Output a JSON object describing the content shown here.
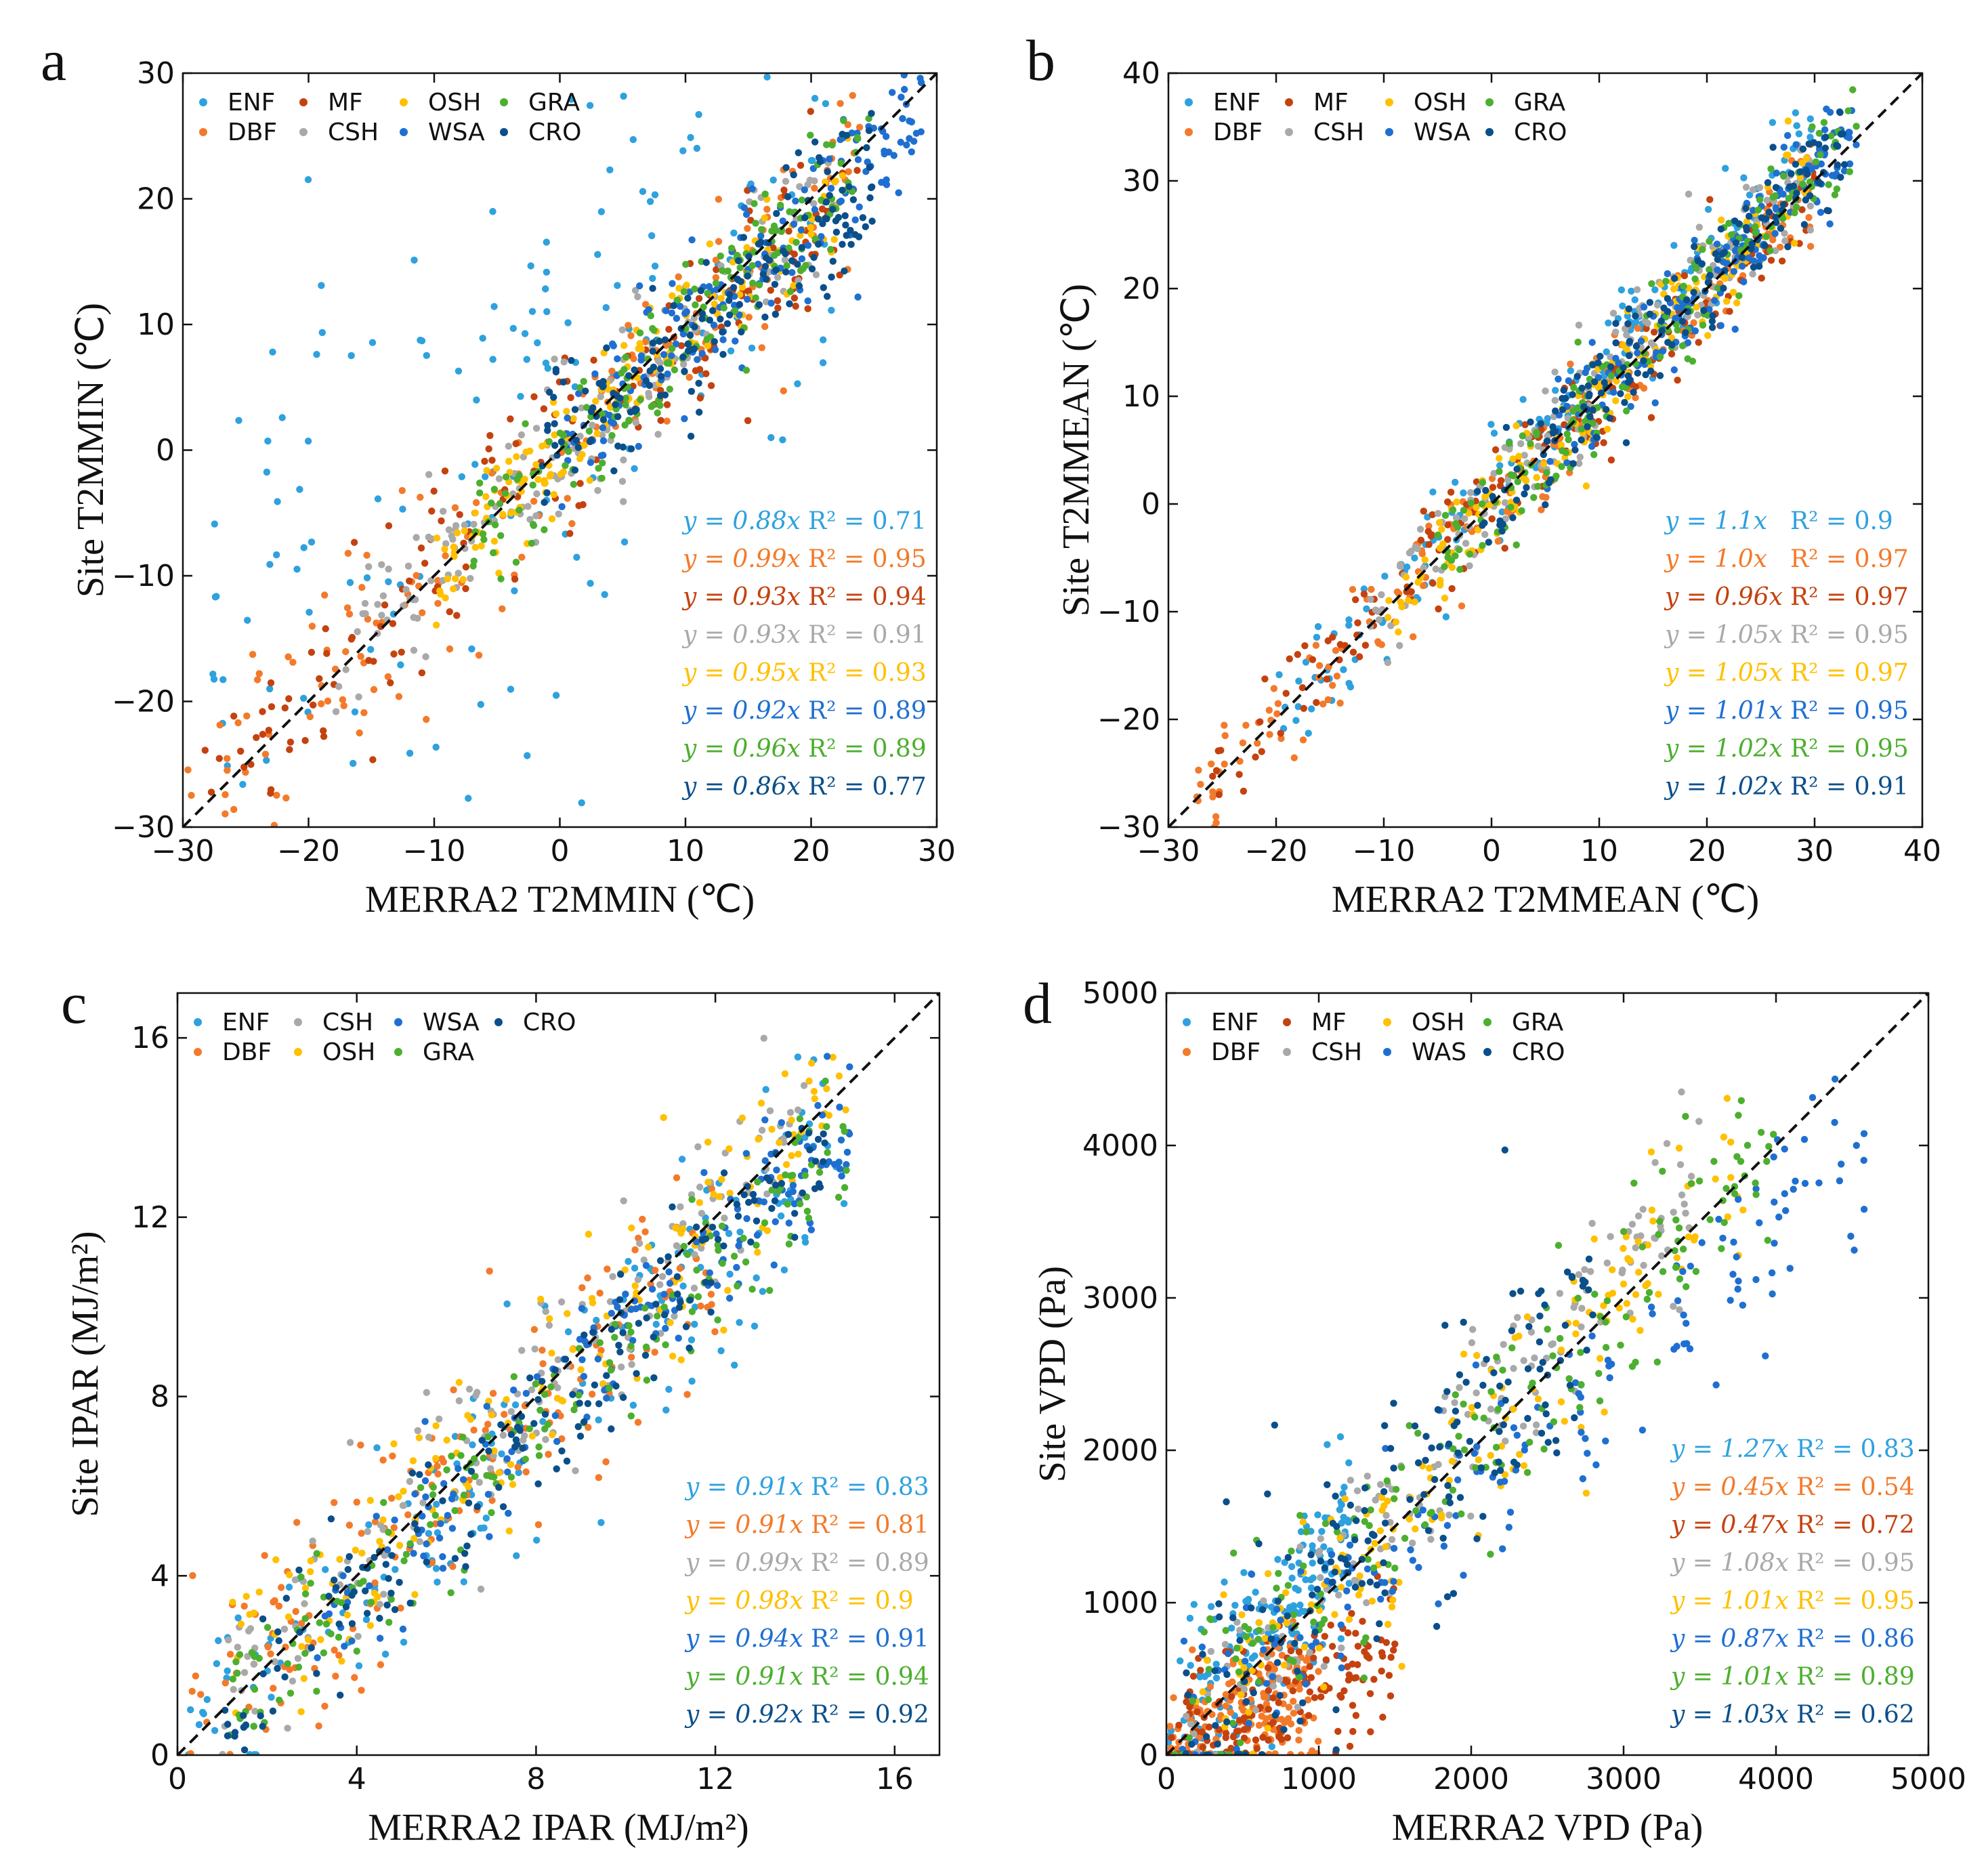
{
  "colors": {
    "ENF": "#2ea1de",
    "DBF": "#f37a2a",
    "MF": "#c4420f",
    "CSH": "#a9a9a9",
    "OSH": "#ffc000",
    "WSA": "#1f6fd1",
    "GRA": "#4caf2f",
    "CRO": "#0b4f8a"
  },
  "chart_data": [
    {
      "type": "scatter",
      "panel": "a",
      "xlabel": "MERRA2 T2MMIN (℃)",
      "ylabel": "Site T2MMIN (℃)",
      "xlim": [
        -30,
        30
      ],
      "ylim": [
        -30,
        30
      ],
      "xticks": [
        -30,
        -20,
        -10,
        0,
        10,
        20,
        30
      ],
      "yticks": [
        -30,
        -20,
        -10,
        0,
        10,
        20,
        30
      ],
      "xtick_labels": [
        "−30",
        "−20",
        "−10",
        "0",
        "10",
        "20",
        "30"
      ],
      "ytick_labels": [
        "−30",
        "−20",
        "−10",
        "0",
        "10",
        "20",
        "30"
      ],
      "legend": [
        "ENF",
        "DBF",
        "MF",
        "CSH",
        "OSH",
        "WSA",
        "GRA",
        "CRO"
      ],
      "legend_placement": "top-left",
      "stats_placement": "bottom-right",
      "series": [
        {
          "name": "ENF",
          "slope": 0.88,
          "r2": "0.71",
          "eq": "y = 0.88x",
          "r2_label": "R² = 0.71",
          "x_range": [
            -28,
            22
          ],
          "noise": 0.2,
          "offset": 0.22
        },
        {
          "name": "DBF",
          "slope": 0.99,
          "r2": "0.95",
          "eq": "y = 0.99x",
          "r2_label": "R² = 0.95",
          "x_range": [
            -30,
            24
          ],
          "noise": 0.07,
          "offset": 0
        },
        {
          "name": "MF",
          "slope": 0.93,
          "r2": "0.94",
          "eq": "y = 0.93x",
          "r2_label": "R² = 0.94",
          "x_range": [
            -30,
            24
          ],
          "noise": 0.06,
          "offset": -0.02
        },
        {
          "name": "CSH",
          "slope": 0.93,
          "r2": "0.91",
          "eq": "y = 0.93x",
          "r2_label": "R² = 0.91",
          "x_range": [
            -18,
            22
          ],
          "noise": 0.05,
          "offset": 0
        },
        {
          "name": "OSH",
          "slope": 0.95,
          "r2": "0.93",
          "eq": "y = 0.95x",
          "r2_label": "R² = 0.93",
          "x_range": [
            -10,
            23
          ],
          "noise": 0.04,
          "offset": 0
        },
        {
          "name": "WSA",
          "slope": 0.92,
          "r2": "0.89",
          "eq": "y = 0.92x",
          "r2_label": "R² = 0.89",
          "x_range": [
            0,
            29
          ],
          "noise": 0.05,
          "offset": 0
        },
        {
          "name": "GRA",
          "slope": 0.96,
          "r2": "0.89",
          "eq": "y = 0.96x",
          "r2_label": "R² = 0.89",
          "x_range": [
            -8,
            25
          ],
          "noise": 0.05,
          "offset": 0
        },
        {
          "name": "CRO",
          "slope": 0.86,
          "r2": "0.77",
          "eq": "y = 0.86x",
          "r2_label": "R² = 0.77",
          "x_range": [
            -2,
            25
          ],
          "noise": 0.05,
          "offset": 0
        }
      ]
    },
    {
      "type": "scatter",
      "panel": "b",
      "xlabel": "MERRA2 T2MMEAN (℃)",
      "ylabel": "Site T2MMEAN (℃)",
      "xlim": [
        -30,
        40
      ],
      "ylim": [
        -30,
        40
      ],
      "xticks": [
        -30,
        -20,
        -10,
        0,
        10,
        20,
        30,
        40
      ],
      "yticks": [
        -30,
        -20,
        -10,
        0,
        10,
        20,
        30,
        40
      ],
      "xtick_labels": [
        "−30",
        "−20",
        "−10",
        "0",
        "10",
        "20",
        "30",
        "40"
      ],
      "ytick_labels": [
        "−30",
        "−20",
        "−10",
        "0",
        "10",
        "20",
        "30",
        "40"
      ],
      "legend": [
        "ENF",
        "DBF",
        "MF",
        "CSH",
        "OSH",
        "WSA",
        "GRA",
        "CRO"
      ],
      "legend_placement": "top-left",
      "stats_placement": "bottom-right",
      "series": [
        {
          "name": "ENF",
          "slope": 1.1,
          "r2": "0.9",
          "eq": "y = 1.1x",
          "r2_label": "R² = 0.9",
          "x_range": [
            -20,
            30
          ],
          "noise": 0.04,
          "offset": 0.04
        },
        {
          "name": "DBF",
          "slope": 1.0,
          "r2": "0.97",
          "eq": "y = 1.0x",
          "r2_label": "R² = 0.97",
          "x_range": [
            -28,
            30
          ],
          "noise": 0.035,
          "offset": 0
        },
        {
          "name": "MF",
          "slope": 0.96,
          "r2": "0.97",
          "eq": "y = 0.96x",
          "r2_label": "R² = 0.97",
          "x_range": [
            -27,
            30
          ],
          "noise": 0.035,
          "offset": 0
        },
        {
          "name": "CSH",
          "slope": 1.05,
          "r2": "0.95",
          "eq": "y = 1.05x",
          "r2_label": "R² = 0.95",
          "x_range": [
            -12,
            30
          ],
          "noise": 0.035,
          "offset": 0.02
        },
        {
          "name": "OSH",
          "slope": 1.05,
          "r2": "0.97",
          "eq": "y = 1.05x",
          "r2_label": "R² = 0.97",
          "x_range": [
            -10,
            30
          ],
          "noise": 0.03,
          "offset": 0
        },
        {
          "name": "WSA",
          "slope": 1.01,
          "r2": "0.95",
          "eq": "y = 1.01x",
          "r2_label": "R² = 0.95",
          "x_range": [
            5,
            34
          ],
          "noise": 0.035,
          "offset": 0
        },
        {
          "name": "GRA",
          "slope": 1.02,
          "r2": "0.95",
          "eq": "y = 1.02x",
          "r2_label": "R² = 0.95",
          "x_range": [
            -5,
            34
          ],
          "noise": 0.035,
          "offset": 0
        },
        {
          "name": "CRO",
          "slope": 1.02,
          "r2": "0.91",
          "eq": "y = 1.02x",
          "r2_label": "R² = 0.91",
          "x_range": [
            -2,
            33
          ],
          "noise": 0.035,
          "offset": 0
        }
      ]
    },
    {
      "type": "scatter",
      "panel": "c",
      "xlabel": "MERRA2 IPAR (MJ/m²)",
      "ylabel": "Site IPAR (MJ/m²)",
      "xlim": [
        0,
        17
      ],
      "ylim": [
        0,
        17
      ],
      "xticks": [
        0,
        4,
        8,
        12,
        16
      ],
      "yticks": [
        0,
        4,
        8,
        12,
        16
      ],
      "xtick_labels": [
        "0",
        "4",
        "8",
        "12",
        "16"
      ],
      "ytick_labels": [
        "0",
        "4",
        "8",
        "12",
        "16"
      ],
      "legend": [
        "ENF",
        "DBF",
        "CSH",
        "OSH",
        "WSA",
        "GRA",
        "CRO"
      ],
      "legend_placement": "top-left",
      "stats_placement": "bottom-right",
      "series": [
        {
          "name": "ENF",
          "slope": 0.91,
          "r2": "0.83",
          "eq": "y = 0.91x",
          "r2_label": "R² = 0.83",
          "x_range": [
            0.2,
            15
          ],
          "noise": 0.07,
          "offset": 0.02
        },
        {
          "name": "DBF",
          "slope": 0.91,
          "r2": "0.81",
          "eq": "y = 0.91x",
          "r2_label": "R² = 0.81",
          "x_range": [
            0.2,
            12
          ],
          "noise": 0.08,
          "offset": 0.04
        },
        {
          "name": "CSH",
          "slope": 0.99,
          "r2": "0.89",
          "eq": "y = 0.99x",
          "r2_label": "R² = 0.89",
          "x_range": [
            1,
            14
          ],
          "noise": 0.06,
          "offset": 0.02
        },
        {
          "name": "OSH",
          "slope": 0.98,
          "r2": "0.9",
          "eq": "y = 0.98x",
          "r2_label": "R² = 0.9",
          "x_range": [
            1,
            15
          ],
          "noise": 0.06,
          "offset": 0.03
        },
        {
          "name": "WSA",
          "slope": 0.94,
          "r2": "0.91",
          "eq": "y = 0.94x",
          "r2_label": "R² = 0.91",
          "x_range": [
            3,
            15
          ],
          "noise": 0.045,
          "offset": 0
        },
        {
          "name": "GRA",
          "slope": 0.91,
          "r2": "0.94",
          "eq": "y = 0.91x",
          "r2_label": "R² = 0.94",
          "x_range": [
            1,
            15
          ],
          "noise": 0.045,
          "offset": 0
        },
        {
          "name": "CRO",
          "slope": 0.92,
          "r2": "0.92",
          "eq": "y = 0.92x",
          "r2_label": "R² = 0.92",
          "x_range": [
            0.5,
            14.5
          ],
          "noise": 0.045,
          "offset": 0
        }
      ]
    },
    {
      "type": "scatter",
      "panel": "d",
      "xlabel": "MERRA2 VPD (Pa)",
      "ylabel": "Site VPD (Pa)",
      "xlim": [
        0,
        5000
      ],
      "ylim": [
        0,
        5000
      ],
      "xticks": [
        0,
        1000,
        2000,
        3000,
        4000,
        5000
      ],
      "yticks": [
        0,
        1000,
        2000,
        3000,
        4000,
        5000
      ],
      "xtick_labels": [
        "0",
        "1000",
        "2000",
        "3000",
        "4000",
        "5000"
      ],
      "ytick_labels": [
        "0",
        "1000",
        "2000",
        "3000",
        "4000",
        "5000"
      ],
      "legend": [
        "ENF",
        "DBF",
        "MF",
        "CSH",
        "OSH",
        "WAS",
        "GRA",
        "CRO"
      ],
      "legend_placement": "top-left",
      "stats_placement": "bottom-right",
      "series": [
        {
          "name": "ENF",
          "slope": 1.27,
          "r2": "0.83",
          "eq": "y = 1.27x",
          "r2_label": "R² = 0.83",
          "x_range": [
            0,
            1200
          ],
          "noise": 0.06,
          "offset": 0
        },
        {
          "name": "DBF",
          "slope": 0.45,
          "r2": "0.54",
          "eq": "y = 0.45x",
          "r2_label": "R² = 0.54",
          "x_range": [
            0,
            1000
          ],
          "noise": 0.05,
          "offset": 0
        },
        {
          "name": "MF",
          "slope": 0.47,
          "r2": "0.72",
          "eq": "y = 0.47x",
          "r2_label": "R² = 0.72",
          "x_range": [
            0,
            1500
          ],
          "noise": 0.05,
          "offset": 0
        },
        {
          "name": "CSH",
          "slope": 1.08,
          "r2": "0.95",
          "eq": "y = 1.08x",
          "r2_label": "R² = 0.95",
          "x_range": [
            100,
            3500
          ],
          "noise": 0.05,
          "offset": 0
        },
        {
          "name": "OSH",
          "slope": 1.01,
          "r2": "0.95",
          "eq": "y = 1.01x",
          "r2_label": "R² = 0.95",
          "x_range": [
            100,
            3800
          ],
          "noise": 0.06,
          "offset": 0
        },
        {
          "name": "WAS",
          "slope": 0.87,
          "r2": "0.86",
          "eq": "y = 0.87x",
          "r2_label": "R² = 0.86",
          "x_range": [
            100,
            4600
          ],
          "noise": 0.07,
          "offset": 0
        },
        {
          "name": "GRA",
          "slope": 1.01,
          "r2": "0.89",
          "eq": "y = 1.01x",
          "r2_label": "R² = 0.89",
          "x_range": [
            50,
            4000
          ],
          "noise": 0.07,
          "offset": 0
        },
        {
          "name": "CRO",
          "slope": 1.03,
          "r2": "0.62",
          "eq": "y = 1.03x",
          "r2_label": "R² = 0.62",
          "x_range": [
            50,
            2800
          ],
          "noise": 0.09,
          "offset": 0.03
        }
      ]
    }
  ]
}
